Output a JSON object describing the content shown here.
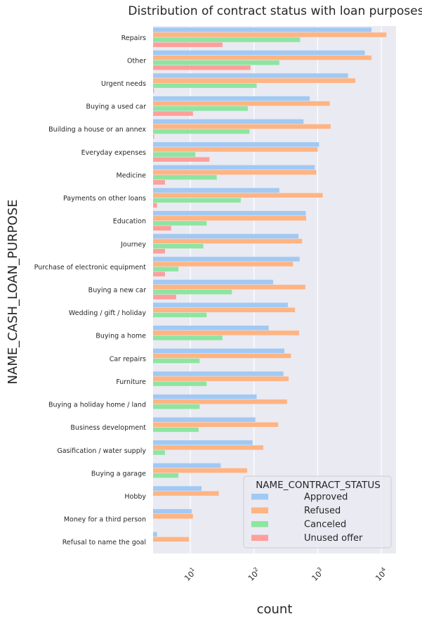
{
  "chart_data": {
    "type": "bar",
    "orientation": "horizontal",
    "title": "Distribution of contract status with loan purposes",
    "xlabel": "count",
    "ylabel": "NAME_CASH_LOAN_PURPOSE",
    "xscale": "log",
    "xlim": [
      2.6,
      17000
    ],
    "xticks": [
      10,
      100,
      1000,
      10000
    ],
    "xtick_labels": [
      {
        "base": "10",
        "exp": "1"
      },
      {
        "base": "10",
        "exp": "2"
      },
      {
        "base": "10",
        "exp": "3"
      },
      {
        "base": "10",
        "exp": "4"
      }
    ],
    "grid": true,
    "legend": {
      "title": "NAME_CONTRACT_STATUS",
      "location": "lower right"
    },
    "categories": [
      "Repairs",
      "Other",
      "Urgent needs",
      "Buying a used car",
      "Building a house or an annex",
      "Everyday expenses",
      "Medicine",
      "Payments on other loans",
      "Education",
      "Journey",
      "Purchase of electronic equipment",
      "Buying a new car",
      "Wedding / gift / holiday",
      "Buying a home",
      "Car repairs",
      "Furniture",
      "Buying a holiday home / land",
      "Business development",
      "Gasification / water supply",
      "Buying a garage",
      "Hobby",
      "Money for a third person",
      "Refusal to name the goal"
    ],
    "series": [
      {
        "name": "Approved",
        "color": "#a1c9f4",
        "values": [
          7000,
          5500,
          3000,
          750,
          600,
          1050,
          900,
          250,
          650,
          500,
          520,
          200,
          340,
          170,
          300,
          290,
          110,
          105,
          95,
          30,
          15,
          10.5,
          3
        ]
      },
      {
        "name": "Refused",
        "color": "#ffb482",
        "values": [
          12000,
          7000,
          3900,
          1550,
          1600,
          1000,
          950,
          1200,
          660,
          570,
          410,
          640,
          440,
          510,
          380,
          350,
          330,
          240,
          140,
          78,
          28,
          11,
          9.5
        ]
      },
      {
        "name": "Canceled",
        "color": "#8de5a1",
        "values": [
          530,
          250,
          110,
          80,
          85,
          12,
          26,
          62,
          18,
          16,
          6.5,
          45,
          18,
          32,
          14,
          18,
          14,
          13.5,
          4,
          6.5,
          null,
          null,
          null
        ]
      },
      {
        "name": "Unused offer",
        "color": "#ff9f9b",
        "values": [
          32,
          88,
          2.7,
          11,
          2.7,
          20,
          4,
          3,
          5,
          4,
          4,
          6,
          null,
          null,
          null,
          null,
          null,
          null,
          null,
          null,
          null,
          null,
          null
        ]
      }
    ]
  }
}
